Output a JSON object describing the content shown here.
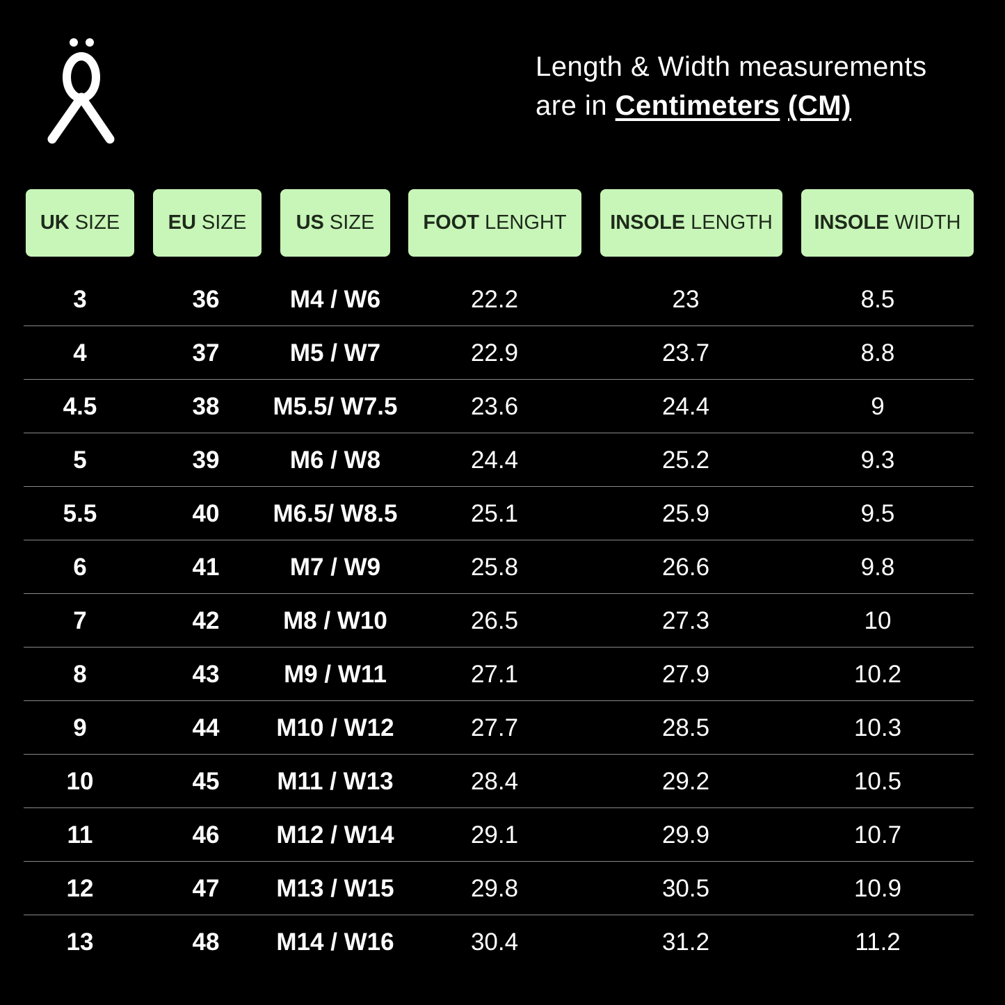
{
  "note": {
    "line1": "Length & Width measurements",
    "line2_prefix": "are in ",
    "unit_word": "Centimeters",
    "unit_abbr": "(CM)"
  },
  "colors": {
    "header_bg": "#c8f5b8",
    "background": "#000000",
    "text": "#ffffff"
  },
  "headers": [
    {
      "bold": "UK",
      "rest": "SIZE"
    },
    {
      "bold": "EU",
      "rest": "SIZE"
    },
    {
      "bold": "US",
      "rest": "SIZE"
    },
    {
      "bold": "FOOT",
      "rest": "LENGHT"
    },
    {
      "bold": "INSOLE",
      "rest": "LENGTH"
    },
    {
      "bold": "INSOLE",
      "rest": "WIDTH"
    }
  ],
  "rows": [
    [
      "3",
      "36",
      "M4 / W6",
      "22.2",
      "23",
      "8.5"
    ],
    [
      "4",
      "37",
      "M5 / W7",
      "22.9",
      "23.7",
      "8.8"
    ],
    [
      "4.5",
      "38",
      "M5.5/ W7.5",
      "23.6",
      "24.4",
      "9"
    ],
    [
      "5",
      "39",
      "M6 / W8",
      "24.4",
      "25.2",
      "9.3"
    ],
    [
      "5.5",
      "40",
      "M6.5/ W8.5",
      "25.1",
      "25.9",
      "9.5"
    ],
    [
      "6",
      "41",
      "M7 / W9",
      "25.8",
      "26.6",
      "9.8"
    ],
    [
      "7",
      "42",
      "M8 / W10",
      "26.5",
      "27.3",
      "10"
    ],
    [
      "8",
      "43",
      "M9 / W11",
      "27.1",
      "27.9",
      "10.2"
    ],
    [
      "9",
      "44",
      "M10 / W12",
      "27.7",
      "28.5",
      "10.3"
    ],
    [
      "10",
      "45",
      "M11 / W13",
      "28.4",
      "29.2",
      "10.5"
    ],
    [
      "11",
      "46",
      "M12 / W14",
      "29.1",
      "29.9",
      "10.7"
    ],
    [
      "12",
      "47",
      "M13 / W15",
      "29.8",
      "30.5",
      "10.9"
    ],
    [
      "13",
      "48",
      "M14 / W16",
      "30.4",
      "31.2",
      "11.2"
    ]
  ]
}
